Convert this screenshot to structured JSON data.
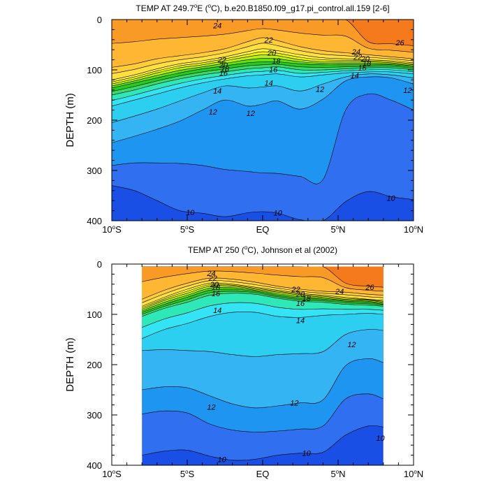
{
  "chart_data": [
    {
      "type": "contour",
      "title": "TEMP AT 249.7°E (°C), b.e20.B1850.f09_g17.pi_control.all.159 [2-6]",
      "title_parts": {
        "pre": "TEMP AT 249.7",
        "sup": "o",
        "post": "E (",
        "sup2": "o",
        "post2": "C), b.e20.B1850.f09_g17.pi_control.all.159 [2-6]"
      },
      "xlabel": "",
      "ylabel": "DEPTH (m)",
      "xlim": [
        -10,
        10
      ],
      "ylim": [
        400,
        0
      ],
      "x_ticks": [
        {
          "value": -10,
          "label": "10",
          "sup": "o",
          "suffix": "S"
        },
        {
          "value": -5,
          "label": "5",
          "sup": "o",
          "suffix": "S"
        },
        {
          "value": 0,
          "label": "EQ",
          "sup": "",
          "suffix": ""
        },
        {
          "value": 5,
          "label": "5",
          "sup": "o",
          "suffix": "N"
        },
        {
          "value": 10,
          "label": "10",
          "sup": "o",
          "suffix": "N"
        }
      ],
      "y_ticks": [
        {
          "value": 0,
          "label": "0"
        },
        {
          "value": 100,
          "label": "100"
        },
        {
          "value": 200,
          "label": "200"
        },
        {
          "value": 300,
          "label": "300"
        },
        {
          "value": 400,
          "label": "400"
        }
      ],
      "data_xrange": [
        -10,
        10
      ],
      "contour_levels": [
        10,
        11,
        12,
        13,
        14,
        15,
        16,
        17,
        18,
        19,
        20,
        21,
        22,
        23,
        24,
        25,
        26,
        27
      ],
      "level_colors": [
        "#1a4fe6",
        "#2f6ff0",
        "#1f95f2",
        "#35b4f4",
        "#2ccfef",
        "#34e3f4",
        "#2ee8b8",
        "#3ad96a",
        "#22cc22",
        "#66dd11",
        "#b8f010",
        "#e8f010",
        "#fff43a",
        "#ffe040",
        "#ffcc3a",
        "#ffb633",
        "#f99a26",
        "#f57a1c",
        "#ee4422"
      ],
      "x": [
        -10,
        -8.5,
        -7,
        -5.5,
        -4,
        -2.5,
        -1,
        0,
        1,
        2.5,
        4,
        5.5,
        7,
        8.5,
        10
      ],
      "isotherm_depths": {
        "10": [
          330,
          340,
          360,
          380,
          385,
          392,
          384,
          382,
          385,
          398,
          405,
          362,
          342,
          352,
          358
        ],
        "11": [
          290,
          285,
          285,
          286,
          290,
          298,
          302,
          305,
          306,
          312,
          318,
          180,
          148,
          160,
          180
        ],
        "12": [
          245,
          232,
          218,
          202,
          180,
          160,
          172,
          168,
          162,
          178,
          158,
          122,
          114,
          116,
          128
        ],
        "13": [
          205,
          192,
          178,
          162,
          146,
          132,
          136,
          134,
          132,
          142,
          128,
          114,
          108,
          110,
          116
        ],
        "14": [
          172,
          160,
          148,
          136,
          126,
          118,
          112,
          110,
          108,
          114,
          110,
          106,
          104,
          104,
          108
        ],
        "16": [
          150,
          140,
          128,
          118,
          110,
          104,
          98,
          96,
          94,
          100,
          100,
          98,
          96,
          96,
          100
        ],
        "18": [
          136,
          126,
          116,
          106,
          98,
          92,
          86,
          84,
          84,
          88,
          90,
          90,
          90,
          90,
          94
        ],
        "20": [
          128,
          118,
          106,
          96,
          90,
          82,
          74,
          70,
          72,
          80,
          84,
          84,
          84,
          86,
          90
        ],
        "22": [
          120,
          110,
          98,
          88,
          82,
          74,
          64,
          58,
          62,
          70,
          76,
          78,
          80,
          82,
          86
        ],
        "24": [
          95,
          88,
          78,
          72,
          66,
          58,
          44,
          36,
          42,
          54,
          62,
          66,
          70,
          74,
          78
        ],
        "26": [
          0,
          0,
          0,
          0,
          0,
          0,
          0,
          0,
          0,
          0,
          0,
          0,
          44,
          48,
          52
        ]
      },
      "contour_labels": [
        {
          "text": "24",
          "x": -3.0,
          "y": 12
        },
        {
          "text": "22",
          "x": -2.7,
          "y": 80
        },
        {
          "text": "20",
          "x": -2.6,
          "y": 90
        },
        {
          "text": "18",
          "x": -2.5,
          "y": 98
        },
        {
          "text": "16",
          "x": -2.6,
          "y": 106
        },
        {
          "text": "14",
          "x": -3.0,
          "y": 142
        },
        {
          "text": "12",
          "x": -3.3,
          "y": 183
        },
        {
          "text": "22",
          "x": 0.4,
          "y": 40
        },
        {
          "text": "20",
          "x": 0.6,
          "y": 66
        },
        {
          "text": "18",
          "x": 0.9,
          "y": 82
        },
        {
          "text": "16",
          "x": 0.7,
          "y": 99
        },
        {
          "text": "14",
          "x": 0.4,
          "y": 126
        },
        {
          "text": "12",
          "x": -0.8,
          "y": 186
        },
        {
          "text": "12",
          "x": 3.8,
          "y": 138
        },
        {
          "text": "26",
          "x": 9.1,
          "y": 46
        },
        {
          "text": "24",
          "x": 6.2,
          "y": 64
        },
        {
          "text": "22",
          "x": 6.3,
          "y": 74
        },
        {
          "text": "20",
          "x": 6.8,
          "y": 78
        },
        {
          "text": "18",
          "x": 6.9,
          "y": 87
        },
        {
          "text": "16",
          "x": 6.6,
          "y": 96
        },
        {
          "text": "14",
          "x": 6.1,
          "y": 111
        },
        {
          "text": "12",
          "x": 9.6,
          "y": 140
        },
        {
          "text": "10",
          "x": -4.8,
          "y": 383
        },
        {
          "text": "10",
          "x": 1.0,
          "y": 384
        },
        {
          "text": "10",
          "x": 8.5,
          "y": 355
        }
      ]
    },
    {
      "type": "contour",
      "title": "TEMP AT 250 (°C), Johnson et al (2002)",
      "title_parts": {
        "pre": "TEMP AT 250 (",
        "sup": "o",
        "post": "C), Johnson et al (2002)",
        "sup2": "",
        "post2": ""
      },
      "xlabel": "",
      "ylabel": "DEPTH (m)",
      "xlim": [
        -10,
        10
      ],
      "ylim": [
        400,
        0
      ],
      "x_ticks": [
        {
          "value": -10,
          "label": "10",
          "sup": "o",
          "suffix": "S"
        },
        {
          "value": -5,
          "label": "5",
          "sup": "o",
          "suffix": "S"
        },
        {
          "value": 0,
          "label": "EQ",
          "sup": "",
          "suffix": ""
        },
        {
          "value": 5,
          "label": "5",
          "sup": "o",
          "suffix": "N"
        },
        {
          "value": 10,
          "label": "10",
          "sup": "o",
          "suffix": "N"
        }
      ],
      "y_ticks": [
        {
          "value": 0,
          "label": "0"
        },
        {
          "value": 100,
          "label": "100"
        },
        {
          "value": 200,
          "label": "200"
        },
        {
          "value": 300,
          "label": "300"
        },
        {
          "value": 400,
          "label": "400"
        }
      ],
      "data_xrange": [
        -8,
        8
      ],
      "data_yrange": [
        5,
        400
      ],
      "contour_levels": [
        10,
        11,
        12,
        13,
        14,
        15,
        16,
        17,
        18,
        19,
        20,
        21,
        22,
        23,
        24,
        25,
        26,
        27
      ],
      "level_colors": [
        "#1a4fe6",
        "#2f6ff0",
        "#1f95f2",
        "#35b4f4",
        "#2ccfef",
        "#34e3f4",
        "#2ee8b8",
        "#3ad96a",
        "#22cc22",
        "#66dd11",
        "#b8f010",
        "#e8f010",
        "#fff43a",
        "#ffe040",
        "#ffcc3a",
        "#ffb633",
        "#f99a26",
        "#f57a1c",
        "#ee4422"
      ],
      "x": [
        -8,
        -6.5,
        -5,
        -3.5,
        -2,
        -0.5,
        1,
        2.5,
        4,
        5.5,
        7,
        8
      ],
      "isotherm_depths": {
        "10": [
          380,
          372,
          370,
          382,
          390,
          388,
          380,
          376,
          374,
          340,
          322,
          324
        ],
        "11": [
          298,
          292,
          296,
          318,
          330,
          334,
          332,
          328,
          322,
          268,
          258,
          268
        ],
        "12": [
          250,
          244,
          246,
          262,
          278,
          286,
          282,
          276,
          270,
          202,
          188,
          196
        ],
        "13": [
          172,
          170,
          172,
          174,
          180,
          184,
          180,
          178,
          174,
          140,
          130,
          132
        ],
        "14": [
          148,
          130,
          118,
          104,
          96,
          96,
          104,
          106,
          102,
          100,
          98,
          100
        ],
        "16": [
          104,
          88,
          76,
          62,
          58,
          60,
          68,
          74,
          76,
          80,
          82,
          84
        ],
        "18": [
          96,
          80,
          66,
          52,
          50,
          54,
          62,
          68,
          70,
          74,
          76,
          80
        ],
        "20": [
          90,
          72,
          58,
          44,
          44,
          50,
          56,
          62,
          66,
          70,
          72,
          76
        ],
        "22": [
          84,
          66,
          50,
          38,
          40,
          46,
          52,
          58,
          62,
          66,
          70,
          72
        ],
        "24": [
          70,
          52,
          38,
          28,
          30,
          36,
          44,
          50,
          54,
          56,
          60,
          62
        ],
        "26": [
          0,
          0,
          0,
          0,
          0,
          0,
          0,
          0,
          0,
          38,
          44,
          46
        ]
      },
      "contour_labels": [
        {
          "text": "24",
          "x": -3.4,
          "y": 18
        },
        {
          "text": "22",
          "x": -3.3,
          "y": 28
        },
        {
          "text": "20",
          "x": -3.2,
          "y": 40
        },
        {
          "text": "18",
          "x": -3.1,
          "y": 46
        },
        {
          "text": "16",
          "x": -3.1,
          "y": 58
        },
        {
          "text": "14",
          "x": -3.0,
          "y": 92
        },
        {
          "text": "22",
          "x": 2.2,
          "y": 50
        },
        {
          "text": "20",
          "x": 2.5,
          "y": 60
        },
        {
          "text": "18",
          "x": 2.9,
          "y": 68
        },
        {
          "text": "16",
          "x": 2.5,
          "y": 78
        },
        {
          "text": "14",
          "x": 2.5,
          "y": 112
        },
        {
          "text": "24",
          "x": 5.1,
          "y": 54
        },
        {
          "text": "26",
          "x": 7.1,
          "y": 46
        },
        {
          "text": "12",
          "x": 5.9,
          "y": 160
        },
        {
          "text": "12",
          "x": -3.4,
          "y": 284
        },
        {
          "text": "12",
          "x": 2.1,
          "y": 276
        },
        {
          "text": "10",
          "x": -2.7,
          "y": 388
        },
        {
          "text": "10",
          "x": 2.9,
          "y": 376
        },
        {
          "text": "10",
          "x": 7.8,
          "y": 346
        }
      ]
    }
  ]
}
